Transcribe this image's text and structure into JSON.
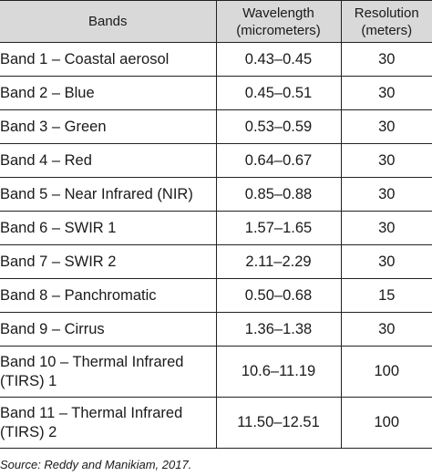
{
  "table": {
    "headers": {
      "bands": "Bands",
      "wavelength_line1": "Wavelength",
      "wavelength_line2": "(micrometers)",
      "resolution_line1": "Resolution",
      "resolution_line2": "(meters)"
    },
    "rows": [
      {
        "band": "Band 1 – Coastal aerosol",
        "wavelength": "0.43–0.45",
        "resolution": "30"
      },
      {
        "band": "Band 2 – Blue",
        "wavelength": "0.45–0.51",
        "resolution": "30"
      },
      {
        "band": "Band 3 – Green",
        "wavelength": "0.53–0.59",
        "resolution": "30"
      },
      {
        "band": "Band 4 – Red",
        "wavelength": "0.64–0.67",
        "resolution": "30"
      },
      {
        "band": "Band 5 – Near Infrared (NIR)",
        "wavelength": "0.85–0.88",
        "resolution": "30"
      },
      {
        "band": "Band 6 – SWIR 1",
        "wavelength": "1.57–1.65",
        "resolution": "30"
      },
      {
        "band": "Band 7 – SWIR 2",
        "wavelength": "2.11–2.29",
        "resolution": "30"
      },
      {
        "band": "Band 8 – Panchromatic",
        "wavelength": "0.50–0.68",
        "resolution": "15"
      },
      {
        "band": "Band 9 – Cirrus",
        "wavelength": "1.36–1.38",
        "resolution": "30"
      },
      {
        "band": "Band 10 – Thermal Infrared (TIRS) 1",
        "wavelength": "10.6–11.19",
        "resolution": "100"
      },
      {
        "band": "Band 11 – Thermal Infrared (TIRS) 2",
        "wavelength": "11.50–12.51",
        "resolution": "100"
      }
    ]
  },
  "source": "Source: Reddy and Manikiam, 2017."
}
